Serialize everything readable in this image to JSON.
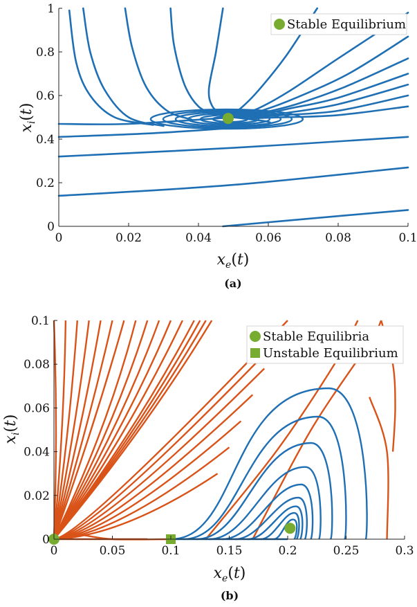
{
  "colors": {
    "blue": "#1f6fb4",
    "orange": "#d95319",
    "green": "#77ac30",
    "axis": "#222222"
  },
  "chart_data": [
    {
      "id": "a",
      "type": "line",
      "caption": "(a)",
      "xlabel": "x_e(t)",
      "ylabel": "x_i(t)",
      "xlim": [
        0,
        0.1
      ],
      "ylim": [
        0,
        1
      ],
      "xticks": [
        "0",
        "0.02",
        "0.04",
        "0.06",
        "0.08",
        "0.1"
      ],
      "yticks": [
        "0",
        "0.2",
        "0.4",
        "0.6",
        "0.8",
        "1"
      ],
      "legend": [
        {
          "label": "Stable Equilibrium",
          "marker": "circle"
        }
      ],
      "legend_position": "top-right",
      "equilibria": [
        {
          "type": "stable",
          "x": 0.0485,
          "y": 0.495
        }
      ],
      "series": [
        {
          "values": [
            [
              0.007,
              1.0
            ],
            [
              0.009,
              0.8
            ],
            [
              0.013,
              0.63
            ],
            [
              0.02,
              0.5
            ],
            [
              0.03,
              0.46
            ]
          ]
        },
        {
          "values": [
            [
              0.019,
              1.0
            ],
            [
              0.021,
              0.82
            ],
            [
              0.025,
              0.64
            ],
            [
              0.031,
              0.53
            ],
            [
              0.038,
              0.49
            ]
          ]
        },
        {
          "values": [
            [
              0.032,
              1.0
            ],
            [
              0.033,
              0.83
            ],
            [
              0.036,
              0.65
            ],
            [
              0.04,
              0.55
            ],
            [
              0.045,
              0.51
            ]
          ]
        },
        {
          "values": [
            [
              0.047,
              1.0
            ],
            [
              0.045,
              0.8
            ],
            [
              0.043,
              0.63
            ],
            [
              0.044,
              0.55
            ],
            [
              0.047,
              0.51
            ]
          ]
        },
        {
          "values": [
            [
              0.074,
              1.0
            ],
            [
              0.065,
              0.78
            ],
            [
              0.057,
              0.62
            ],
            [
              0.052,
              0.54
            ],
            [
              0.049,
              0.51
            ]
          ]
        },
        {
          "values": [
            [
              0.1,
              0.98
            ],
            [
              0.08,
              0.77
            ],
            [
              0.066,
              0.62
            ],
            [
              0.057,
              0.54
            ],
            [
              0.051,
              0.51
            ]
          ]
        },
        {
          "values": [
            [
              0.1,
              0.87
            ],
            [
              0.083,
              0.7
            ],
            [
              0.068,
              0.59
            ],
            [
              0.058,
              0.53
            ],
            [
              0.051,
              0.505
            ]
          ]
        },
        {
          "values": [
            [
              0.1,
              0.77
            ],
            [
              0.082,
              0.64
            ],
            [
              0.068,
              0.56
            ],
            [
              0.058,
              0.52
            ],
            [
              0.051,
              0.5
            ]
          ]
        },
        {
          "values": [
            [
              0.1,
              0.7
            ],
            [
              0.08,
              0.59
            ],
            [
              0.066,
              0.54
            ],
            [
              0.057,
              0.51
            ],
            [
              0.05,
              0.5
            ]
          ]
        },
        {
          "values": [
            [
              0.1,
              0.65
            ],
            [
              0.08,
              0.56
            ],
            [
              0.065,
              0.52
            ],
            [
              0.056,
              0.505
            ],
            [
              0.05,
              0.5
            ]
          ]
        },
        {
          "values": [
            [
              0.1,
              0.6
            ],
            [
              0.08,
              0.53
            ],
            [
              0.064,
              0.51
            ],
            [
              0.055,
              0.5
            ]
          ]
        },
        {
          "values": [
            [
              0.1,
              0.55
            ],
            [
              0.08,
              0.51
            ],
            [
              0.064,
              0.5
            ],
            [
              0.054,
              0.495
            ]
          ]
        },
        {
          "values": [
            [
              0.003,
              0.99
            ],
            [
              0.005,
              0.75
            ],
            [
              0.009,
              0.6
            ],
            [
              0.016,
              0.5
            ],
            [
              0.027,
              0.465
            ]
          ]
        },
        {
          "values": [
            [
              0.0,
              0.47
            ],
            [
              0.02,
              0.47
            ],
            [
              0.05,
              0.5
            ]
          ]
        },
        {
          "values": [
            [
              0.0,
              0.41
            ],
            [
              0.03,
              0.43
            ],
            [
              0.06,
              0.47
            ],
            [
              0.05,
              0.5
            ]
          ]
        },
        {
          "values": [
            [
              0.0,
              0.32
            ],
            [
              0.05,
              0.36
            ],
            [
              0.1,
              0.41
            ]
          ]
        },
        {
          "values": [
            [
              0.0,
              0.14
            ],
            [
              0.05,
              0.19
            ],
            [
              0.1,
              0.27
            ]
          ]
        },
        {
          "values": [
            [
              0.047,
              0.0
            ],
            [
              0.075,
              0.04
            ],
            [
              0.1,
              0.075
            ]
          ]
        }
      ]
    },
    {
      "id": "b",
      "type": "line",
      "caption": "(b)",
      "xlabel": "x_e(t)",
      "ylabel": "x_i(t)",
      "xlim": [
        0,
        0.3
      ],
      "ylim": [
        0,
        0.1
      ],
      "xticks": [
        "0",
        "0.05",
        "0.1",
        "0.15",
        "0.2",
        "0.25",
        "0.3"
      ],
      "yticks": [
        "0",
        "0.02",
        "0.04",
        "0.06",
        "0.08",
        "0.1"
      ],
      "legend": [
        {
          "label": "Stable Equilibria",
          "marker": "circle"
        },
        {
          "label": "Unstable Equilibrium",
          "marker": "square"
        }
      ],
      "legend_position": "top-right",
      "equilibria": [
        {
          "type": "stable",
          "x": 0.0,
          "y": 0.0
        },
        {
          "type": "stable",
          "x": 0.202,
          "y": 0.005
        },
        {
          "type": "unstable",
          "x": 0.1,
          "y": 0.0
        }
      ],
      "orange_ray_endpoints_x": [
        0.0,
        0.01,
        0.02,
        0.03,
        0.04,
        0.05,
        0.06,
        0.07,
        0.08,
        0.09,
        0.1,
        0.11,
        0.12,
        0.125,
        0.13,
        0.135
      ],
      "orange_ray_endpoints_y_right": [
        0.1,
        0.09,
        0.078,
        0.066,
        0.054,
        0.042,
        0.03
      ],
      "series": [
        {
          "values": [
            [
              0.0,
              0.0
            ],
            [
              0.08,
              0.0
            ]
          ]
        },
        {
          "values": [
            [
              0.1,
              0.0
            ],
            [
              0.05,
              0.0
            ],
            [
              0.02,
              0.002
            ],
            [
              0.0,
              0.0
            ]
          ]
        },
        {
          "values": [
            [
              0.28,
              0.1
            ],
            [
              0.29,
              0.08
            ],
            [
              0.292,
              0.06
            ],
            [
              0.29,
              0.04
            ]
          ]
        },
        {
          "values": [
            [
              0.17,
              0.0
            ],
            [
              0.22,
              0.05
            ],
            [
              0.27,
              0.09
            ],
            [
              0.28,
              0.1
            ]
          ]
        },
        {
          "values": [
            [
              0.13,
              0.0
            ],
            [
              0.19,
              0.04
            ],
            [
              0.24,
              0.08
            ],
            [
              0.26,
              0.1
            ]
          ]
        },
        {
          "values": [
            [
              0.285,
              0.0
            ],
            [
              0.285,
              0.04
            ],
            [
              0.27,
              0.065
            ]
          ]
        }
      ],
      "blue_loops": [
        {
          "xmax": 0.268,
          "ymax": 0.069
        },
        {
          "xmax": 0.25,
          "ymax": 0.056
        },
        {
          "xmax": 0.238,
          "ymax": 0.044
        },
        {
          "xmax": 0.228,
          "ymax": 0.033
        },
        {
          "xmax": 0.221,
          "ymax": 0.025
        },
        {
          "xmax": 0.216,
          "ymax": 0.019
        },
        {
          "xmax": 0.212,
          "ymax": 0.015
        },
        {
          "xmax": 0.209,
          "ymax": 0.012
        },
        {
          "xmax": 0.207,
          "ymax": 0.009
        }
      ]
    }
  ]
}
